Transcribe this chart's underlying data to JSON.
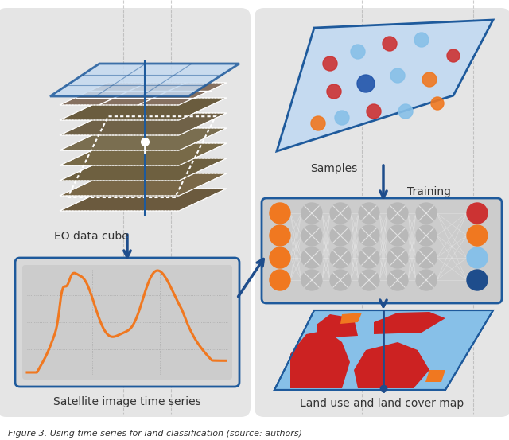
{
  "title": "Figure 3. Using time series for land classification (source: authors)",
  "bg_color": "#ffffff",
  "panel_bg_left": "#e8e8e8",
  "panel_bg_right": "#e8e8e8",
  "blue_light": "#c5daf0",
  "blue_dark": "#1e4d8c",
  "blue_border": "#1e5a9c",
  "orange_color": "#f07820",
  "red_color": "#cc2222",
  "gray_node": "#b8b8b8",
  "light_blue_circle": "#87c0e8",
  "labels": {
    "eo_cube": "EO data cube",
    "timeseries": "Satellite image time series",
    "samples": "Samples",
    "training": "Training",
    "landcover": "Land use and land cover map"
  }
}
